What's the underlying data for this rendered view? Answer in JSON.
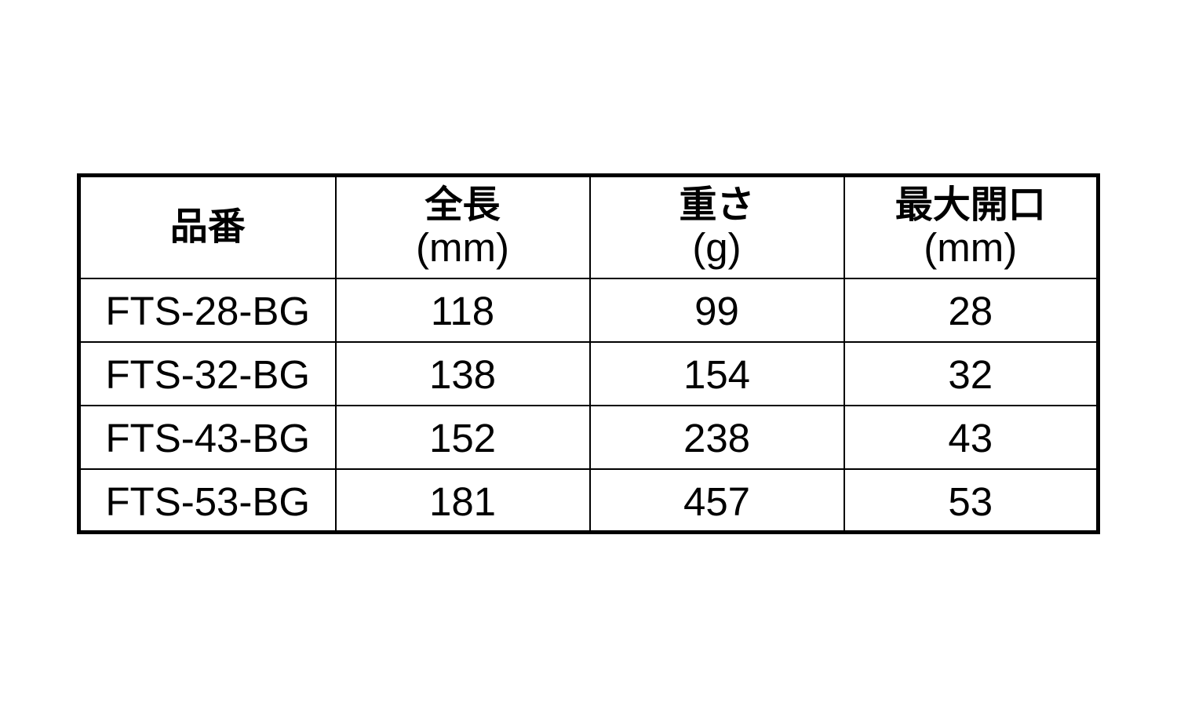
{
  "table": {
    "headers": [
      {
        "label": "品番",
        "unit": ""
      },
      {
        "label": "全長",
        "unit": "(mm)"
      },
      {
        "label": "重さ",
        "unit": "(g)"
      },
      {
        "label": "最大開口",
        "unit": "(mm)"
      }
    ],
    "rows": [
      [
        "FTS-28-BG",
        "118",
        "99",
        "28"
      ],
      [
        "FTS-32-BG",
        "138",
        "154",
        "32"
      ],
      [
        "FTS-43-BG",
        "152",
        "238",
        "43"
      ],
      [
        "FTS-53-BG",
        "181",
        "457",
        "53"
      ]
    ]
  }
}
